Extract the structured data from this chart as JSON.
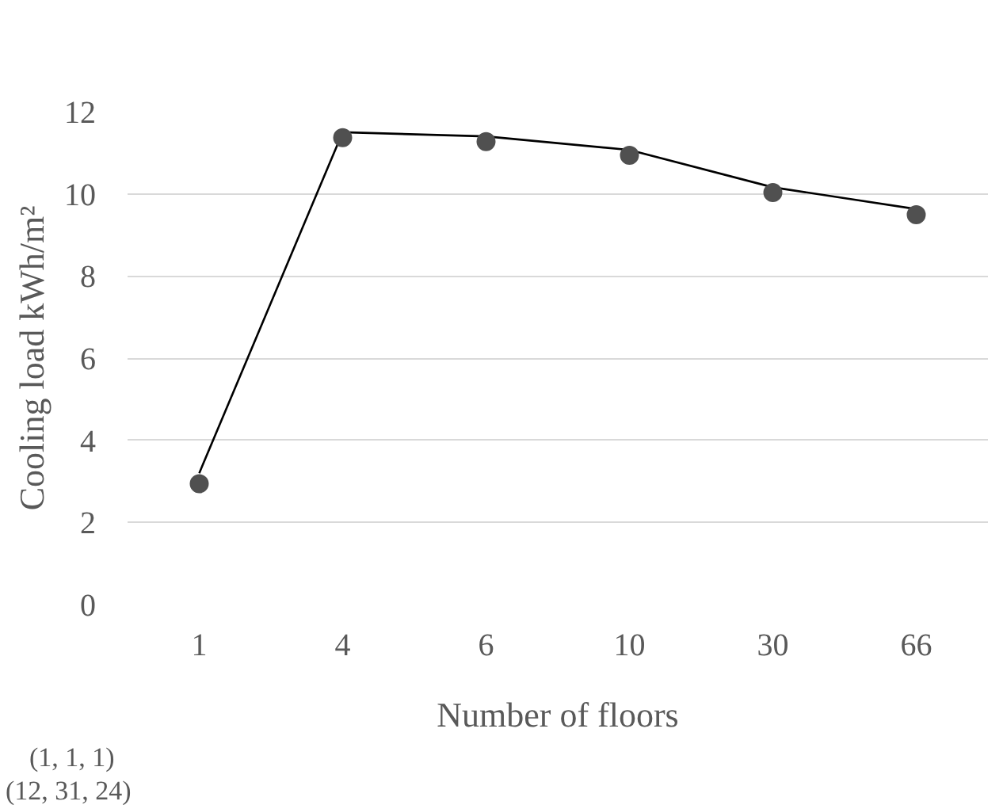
{
  "chart_data": {
    "type": "line",
    "xlabel": "Number of floors",
    "ylabel": "Cooling load kWh/m²",
    "categories": [
      "1",
      "4",
      "6",
      "10",
      "30",
      "66"
    ],
    "series": [
      {
        "color": "#000000",
        "marker": "none",
        "values": [
          3.2,
          11.5,
          11.4,
          11.07,
          10.16,
          9.63
        ]
      },
      {
        "type": "scatter",
        "color": "#505050",
        "marker": "circle",
        "values": [
          2.94,
          11.37,
          11.27,
          10.94,
          10.03,
          9.49
        ]
      }
    ],
    "ylim": [
      0,
      12
    ],
    "yticks": [
      0,
      2,
      4,
      6,
      8,
      10,
      12
    ],
    "grid": "y",
    "annotations": [
      "(1, 1, 1)",
      "(12, 31, 24)"
    ]
  }
}
